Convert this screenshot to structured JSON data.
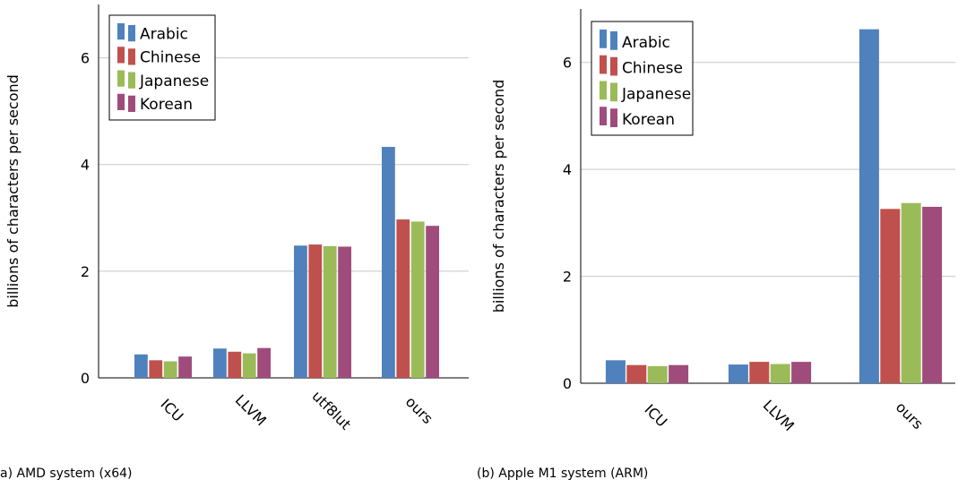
{
  "chart_data": [
    {
      "type": "bar",
      "caption": "a) AMD system (x64)",
      "ylabel": "billions of characters per second",
      "ylim": [
        0,
        7
      ],
      "yticks": [
        0,
        2,
        4,
        6
      ],
      "categories": [
        "ICU",
        "LLVM",
        "utf8lut",
        "ours"
      ],
      "series": [
        {
          "name": "Arabic",
          "color": "#4f81bd",
          "values": [
            0.44,
            0.55,
            2.48,
            4.33
          ]
        },
        {
          "name": "Chinese",
          "color": "#c0504d",
          "values": [
            0.33,
            0.49,
            2.5,
            2.97
          ]
        },
        {
          "name": "Japanese",
          "color": "#9bbb59",
          "values": [
            0.31,
            0.46,
            2.47,
            2.93
          ]
        },
        {
          "name": "Korean",
          "color": "#9f4c7c",
          "values": [
            0.4,
            0.56,
            2.46,
            2.85
          ]
        }
      ],
      "grid": "horizontal",
      "legend": "top-left"
    },
    {
      "type": "bar",
      "caption": "(b) Apple M1 system (ARM)",
      "ylabel": "billions of characters per second",
      "ylim": [
        0,
        7
      ],
      "yticks": [
        0,
        2,
        4,
        6
      ],
      "categories": [
        "ICU",
        "LLVM",
        "ours"
      ],
      "series": [
        {
          "name": "Arabic",
          "color": "#4f81bd",
          "values": [
            0.43,
            0.35,
            6.62
          ]
        },
        {
          "name": "Chinese",
          "color": "#c0504d",
          "values": [
            0.34,
            0.4,
            3.26
          ]
        },
        {
          "name": "Japanese",
          "color": "#9bbb59",
          "values": [
            0.32,
            0.36,
            3.37
          ]
        },
        {
          "name": "Korean",
          "color": "#9f4c7c",
          "values": [
            0.34,
            0.4,
            3.3
          ]
        }
      ],
      "grid": "horizontal",
      "legend": "top-left"
    }
  ]
}
